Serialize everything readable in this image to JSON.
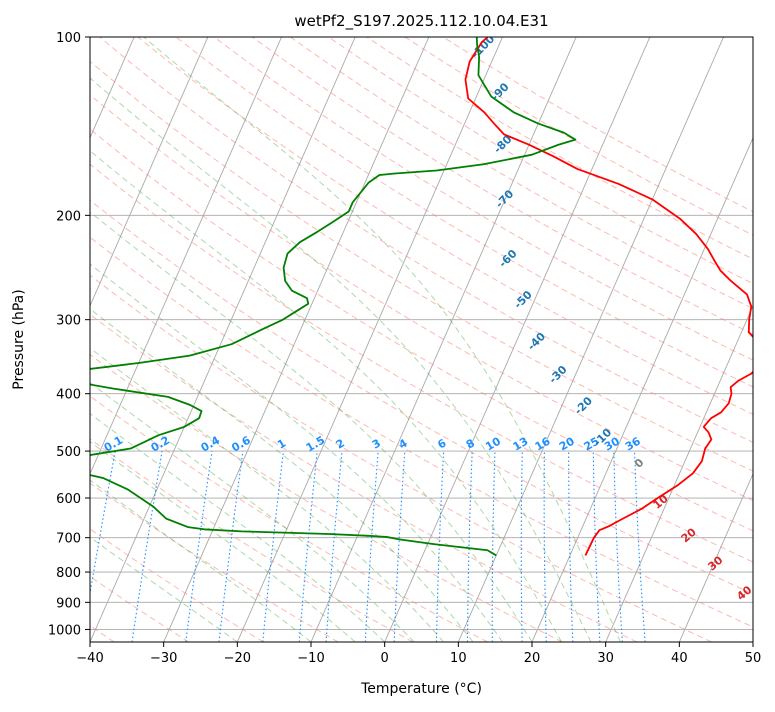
{
  "chart_data": {
    "type": "line",
    "title": "wetPf2_S197.2025.112.10.04.E31",
    "xlabel": "Temperature (°C)",
    "ylabel": "Pressure (hPa)",
    "xlim": [
      -40,
      50
    ],
    "ylim": [
      1050,
      100
    ],
    "log_y": true,
    "grid": true,
    "x_ticks": [
      -40,
      -30,
      -20,
      -10,
      0,
      10,
      20,
      30,
      40,
      50
    ],
    "y_ticks": [
      100,
      200,
      300,
      400,
      500,
      600,
      700,
      800,
      900,
      1000
    ],
    "colors": {
      "temperature": "#ff0000",
      "dewpoint": "#008000",
      "isotherm": "#a9a9a9",
      "dry_adiabat": "#fa8072",
      "moist_adiabat": "#2ca02c",
      "mixing_ratio": "#1e90ff",
      "dry_label": "#d62728",
      "moist_label": "#1f77b4",
      "mr_label": "#1e90ff",
      "moist_zero_label": "#7f7f7f"
    },
    "series": [
      {
        "key": "temperature",
        "points": [
          [
            22.1,
            750
          ],
          [
            22.2,
            700
          ],
          [
            22.5,
            680
          ],
          [
            23.5,
            670
          ],
          [
            25.0,
            650
          ],
          [
            27.0,
            625
          ],
          [
            28.5,
            600
          ],
          [
            30.5,
            570
          ],
          [
            31.8,
            545
          ],
          [
            32.3,
            520
          ],
          [
            32.0,
            495
          ],
          [
            32.3,
            478
          ],
          [
            31.5,
            465
          ],
          [
            30.5,
            455
          ],
          [
            31.0,
            440
          ],
          [
            32.0,
            430
          ],
          [
            32.5,
            415
          ],
          [
            32.3,
            400
          ],
          [
            31.8,
            390
          ],
          [
            32.5,
            380
          ],
          [
            33.8,
            370
          ],
          [
            34.3,
            360
          ],
          [
            34.0,
            345
          ],
          [
            33.2,
            330
          ],
          [
            31.0,
            315
          ],
          [
            30.3,
            300
          ],
          [
            29.8,
            285
          ],
          [
            28.5,
            272
          ],
          [
            25.5,
            258
          ],
          [
            23.5,
            248
          ],
          [
            22.0,
            238
          ],
          [
            20.5,
            228
          ],
          [
            18.0,
            215
          ],
          [
            15.0,
            203
          ],
          [
            10.0,
            188
          ],
          [
            4.5,
            177
          ],
          [
            -2.0,
            167
          ],
          [
            -6.0,
            159
          ],
          [
            -10.0,
            152
          ],
          [
            -14.0,
            146
          ],
          [
            -16.0,
            140
          ],
          [
            -18.0,
            134
          ],
          [
            -21.0,
            127
          ],
          [
            -22.5,
            118
          ],
          [
            -23.0,
            110
          ],
          [
            -22.5,
            102
          ],
          [
            -22.0,
            100
          ]
        ]
      },
      {
        "key": "dewpoint",
        "points": [
          [
            10.0,
            750
          ],
          [
            8.5,
            735
          ],
          [
            1.0,
            718
          ],
          [
            -4.0,
            705
          ],
          [
            -6.0,
            698
          ],
          [
            -8.5,
            695
          ],
          [
            -14.0,
            690
          ],
          [
            -26.0,
            683
          ],
          [
            -31.0,
            678
          ],
          [
            -33.5,
            672
          ],
          [
            -37.0,
            650
          ],
          [
            -39.5,
            620
          ],
          [
            -44.0,
            580
          ],
          [
            -48.0,
            555
          ],
          [
            -56.0,
            530
          ],
          [
            -60.0,
            520
          ],
          [
            -52.0,
            510
          ],
          [
            -46.0,
            495
          ],
          [
            -43.0,
            470
          ],
          [
            -40.0,
            455
          ],
          [
            -38.5,
            440
          ],
          [
            -38.6,
            428
          ],
          [
            -40.5,
            418
          ],
          [
            -44.0,
            405
          ],
          [
            -52.0,
            392
          ],
          [
            -57.0,
            383
          ],
          [
            -59.0,
            378
          ],
          [
            -60.0,
            375
          ],
          [
            -57.5,
            365
          ],
          [
            -50.0,
            355
          ],
          [
            -43.5,
            345
          ],
          [
            -38.5,
            330
          ],
          [
            -35.5,
            313
          ],
          [
            -33.0,
            300
          ],
          [
            -31.5,
            289
          ],
          [
            -30.5,
            282
          ],
          [
            -31.0,
            276
          ],
          [
            -33.5,
            268
          ],
          [
            -35.0,
            258
          ],
          [
            -36.0,
            245
          ],
          [
            -36.3,
            232
          ],
          [
            -35.3,
            222
          ],
          [
            -33.5,
            213
          ],
          [
            -32.0,
            205
          ],
          [
            -30.5,
            197
          ],
          [
            -30.5,
            190
          ],
          [
            -30.0,
            183
          ],
          [
            -29.5,
            176
          ],
          [
            -28.5,
            171
          ],
          [
            -26.5,
            170
          ],
          [
            -21.0,
            168
          ],
          [
            -15.0,
            164
          ],
          [
            -9.0,
            158
          ],
          [
            -6.0,
            152
          ],
          [
            -4.0,
            149
          ],
          [
            -6.0,
            145
          ],
          [
            -10.0,
            140
          ],
          [
            -14.0,
            134
          ],
          [
            -18.0,
            126
          ],
          [
            -21.0,
            116
          ],
          [
            -22.0,
            108
          ],
          [
            -23.0,
            103
          ],
          [
            -23.5,
            100
          ]
        ]
      }
    ],
    "isotherms": [
      -150,
      -140,
      -130,
      -120,
      -110,
      -100,
      -90,
      -80,
      -70,
      -60,
      -50,
      -40,
      -30,
      -20,
      -10,
      0,
      10,
      20,
      30,
      40,
      50
    ],
    "dry_adiabats_theta_C": [
      -40,
      -30,
      -20,
      -10,
      0,
      10,
      20,
      30,
      40,
      50,
      60,
      70,
      80,
      90,
      100,
      110,
      120,
      130,
      140,
      150,
      160,
      170,
      180,
      190,
      200
    ],
    "moist_adiabats_start_C": [
      -20,
      -10,
      -4,
      0,
      4,
      8,
      12,
      16,
      20,
      24,
      28,
      32
    ],
    "mixing_ratios": [
      0.1,
      0.2,
      0.4,
      0.6,
      1,
      1.5,
      2,
      3,
      4,
      6,
      8,
      10,
      13,
      16,
      20,
      25,
      30,
      36
    ],
    "mixing_ratio_labels": [
      "0.1",
      "0.2",
      "0.4",
      "0.6",
      "1",
      "1.5",
      "2",
      "3",
      "4",
      "6",
      "8",
      "10",
      "13",
      "16",
      "20",
      "25",
      "30",
      "36"
    ],
    "dry_adiabat_labels": [
      {
        "text": "10",
        "T": 29.2,
        "p": 610
      },
      {
        "text": "20",
        "T": 35.0,
        "p": 695
      },
      {
        "text": "30",
        "T": 40.3,
        "p": 775
      },
      {
        "text": "40",
        "T": 46.0,
        "p": 870
      }
    ],
    "moist_adiabat_labels": [
      {
        "text": "-100",
        "T": -22.0,
        "p": 104
      },
      {
        "text": "-90",
        "T": -17.0,
        "p": 124
      },
      {
        "text": "-80",
        "T": -13.5,
        "p": 152
      },
      {
        "text": "-70",
        "T": -10.0,
        "p": 188
      },
      {
        "text": "-60",
        "T": -6.0,
        "p": 237
      },
      {
        "text": "-50",
        "T": -1.5,
        "p": 278
      },
      {
        "text": "-40",
        "T": 2.8,
        "p": 327
      },
      {
        "text": "-30",
        "T": 7.7,
        "p": 372
      },
      {
        "text": "-20",
        "T": 13.0,
        "p": 420
      },
      {
        "text": "-10",
        "T": 17.5,
        "p": 475
      },
      {
        "text": "0",
        "T": 24.0,
        "p": 525
      }
    ]
  }
}
